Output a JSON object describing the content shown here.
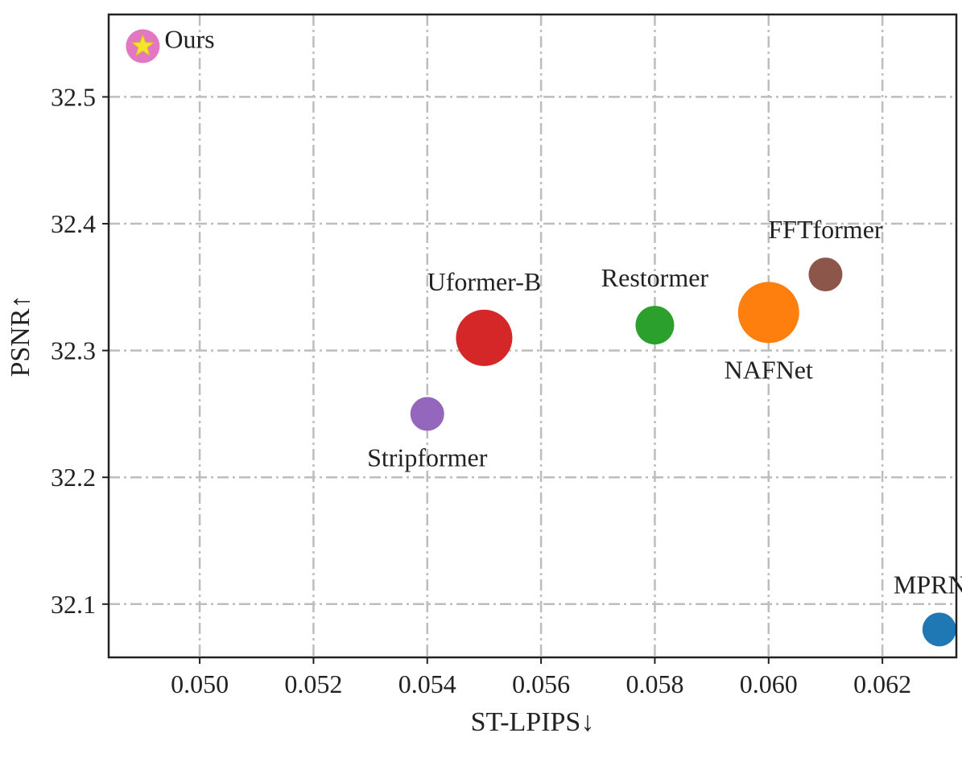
{
  "chart_data": {
    "type": "scatter",
    "xlabel": "ST-LPIPS↓",
    "ylabel": "PSNR↑",
    "xlim": [
      0.0484,
      0.0633
    ],
    "ylim": [
      32.058,
      32.565
    ],
    "xticks": [
      "0.050",
      "0.052",
      "0.054",
      "0.056",
      "0.058",
      "0.060",
      "0.062"
    ],
    "yticks": [
      "32.1",
      "32.2",
      "32.3",
      "32.4",
      "32.5"
    ],
    "grid": true,
    "points": [
      {
        "label": "Ours",
        "x": 0.049,
        "y": 32.54,
        "color": "#e377c2",
        "marker": "star",
        "star_color": "#f5e52a",
        "size": "small",
        "label_pos": "right"
      },
      {
        "label": "Stripformer",
        "x": 0.054,
        "y": 32.25,
        "color": "#9467bd",
        "size": "small",
        "label_pos": "below"
      },
      {
        "label": "Uformer-B",
        "x": 0.055,
        "y": 32.31,
        "color": "#d62728",
        "size": "large",
        "label_pos": "above"
      },
      {
        "label": "Restormer",
        "x": 0.058,
        "y": 32.32,
        "color": "#2ca02c",
        "size": "medium",
        "label_pos": "above"
      },
      {
        "label": "NAFNet",
        "x": 0.06,
        "y": 32.33,
        "color": "#ff7f0e",
        "size": "xlarge",
        "label_pos": "below"
      },
      {
        "label": "FFTformer",
        "x": 0.061,
        "y": 32.36,
        "color": "#8c564b",
        "size": "small",
        "label_pos": "above"
      },
      {
        "label": "MPRNet",
        "x": 0.063,
        "y": 32.08,
        "color": "#1f77b4",
        "size": "small",
        "label_pos": "above"
      }
    ]
  }
}
